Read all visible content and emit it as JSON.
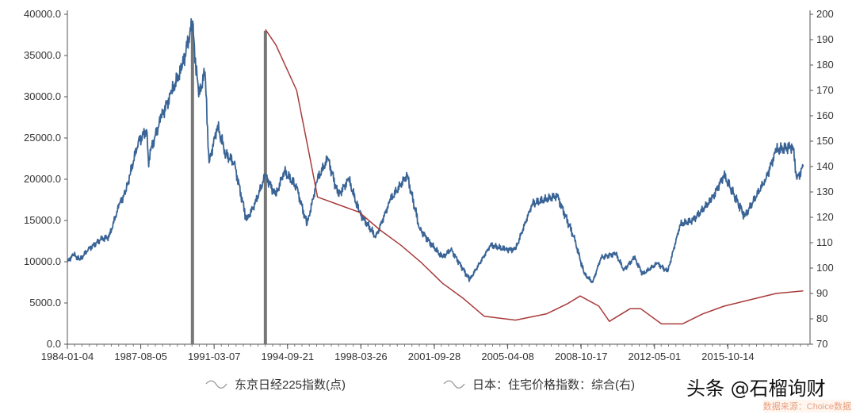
{
  "chart_data": {
    "type": "line",
    "x_tick_labels": [
      "1984-01-04",
      "1987-08-05",
      "1991-03-07",
      "1994-09-21",
      "1998-03-26",
      "2001-09-28",
      "2005-04-08",
      "2008-10-17",
      "2012-05-01",
      "2015-10-14"
    ],
    "y_left": {
      "range": [
        0,
        40000
      ],
      "ticks": [
        "0.0",
        "5000.0",
        "10000.0",
        "15000.0",
        "20000.0",
        "25000.0",
        "30000.0",
        "35000.0",
        "40000.0"
      ]
    },
    "y_right": {
      "range": [
        70,
        200
      ],
      "ticks": [
        "70",
        "80",
        "90",
        "100",
        "110",
        "120",
        "130",
        "140",
        "150",
        "160",
        "170",
        "180",
        "190",
        "200"
      ]
    },
    "grid": false,
    "legend_placement": "bottom",
    "series": [
      {
        "name": "东京日经225指数(点)",
        "axis": "left",
        "color": "#3a6496",
        "points": [
          [
            1984.0,
            10000
          ],
          [
            1984.3,
            10900
          ],
          [
            1984.6,
            10200
          ],
          [
            1985.0,
            11500
          ],
          [
            1985.6,
            12700
          ],
          [
            1986.0,
            13000
          ],
          [
            1986.5,
            17000
          ],
          [
            1986.8,
            18500
          ],
          [
            1987.0,
            20500
          ],
          [
            1987.4,
            24500
          ],
          [
            1987.8,
            26000
          ],
          [
            1987.9,
            21500
          ],
          [
            1988.0,
            23500
          ],
          [
            1988.5,
            27500
          ],
          [
            1989.0,
            30500
          ],
          [
            1989.5,
            33500
          ],
          [
            1989.99,
            38900
          ],
          [
            1990.3,
            30000
          ],
          [
            1990.6,
            33000
          ],
          [
            1990.8,
            22000
          ],
          [
            1991.2,
            26500
          ],
          [
            1991.6,
            23000
          ],
          [
            1992.0,
            22000
          ],
          [
            1992.6,
            15000
          ],
          [
            1993.0,
            17000
          ],
          [
            1993.5,
            20500
          ],
          [
            1994.0,
            18000
          ],
          [
            1994.4,
            21000
          ],
          [
            1995.0,
            19000
          ],
          [
            1995.5,
            14500
          ],
          [
            1996.0,
            20000
          ],
          [
            1996.5,
            22500
          ],
          [
            1997.0,
            18000
          ],
          [
            1997.5,
            20000
          ],
          [
            1998.0,
            16000
          ],
          [
            1998.8,
            13000
          ],
          [
            1999.5,
            17500
          ],
          [
            2000.3,
            20500
          ],
          [
            2000.9,
            14000
          ],
          [
            2001.5,
            12000
          ],
          [
            2002.0,
            10500
          ],
          [
            2002.4,
            11500
          ],
          [
            2003.3,
            7800
          ],
          [
            2004.3,
            12000
          ],
          [
            2005.0,
            11500
          ],
          [
            2005.5,
            11500
          ],
          [
            2006.3,
            17000
          ],
          [
            2007.5,
            18000
          ],
          [
            2008.3,
            13000
          ],
          [
            2008.8,
            8500
          ],
          [
            2009.2,
            7500
          ],
          [
            2009.6,
            10500
          ],
          [
            2010.3,
            11000
          ],
          [
            2010.7,
            9000
          ],
          [
            2011.2,
            10500
          ],
          [
            2011.6,
            8500
          ],
          [
            2012.3,
            9800
          ],
          [
            2012.8,
            8800
          ],
          [
            2013.4,
            14500
          ],
          [
            2014.0,
            15000
          ],
          [
            2014.9,
            17500
          ],
          [
            2015.5,
            20500
          ],
          [
            2016.5,
            15500
          ],
          [
            2017.5,
            20000
          ],
          [
            2018.0,
            23500
          ],
          [
            2018.8,
            24000
          ],
          [
            2019.0,
            20000
          ],
          [
            2019.3,
            21500
          ]
        ]
      },
      {
        "name": "日本：住宅价格指数：综合(右)",
        "axis": "right",
        "color": "#a83a3a",
        "points": [
          [
            1993.5,
            194
          ],
          [
            1994.0,
            188
          ],
          [
            1995.0,
            170
          ],
          [
            1995.6,
            145
          ],
          [
            1996.0,
            128
          ],
          [
            1997.0,
            125
          ],
          [
            1998.0,
            122
          ],
          [
            1999.0,
            115
          ],
          [
            2000.0,
            109
          ],
          [
            2001.0,
            102
          ],
          [
            2002.0,
            94
          ],
          [
            2003.0,
            88
          ],
          [
            2004.0,
            81
          ],
          [
            2005.5,
            79.5
          ],
          [
            2007.0,
            82
          ],
          [
            2008.0,
            86
          ],
          [
            2008.6,
            89
          ],
          [
            2009.5,
            85
          ],
          [
            2010.0,
            79
          ],
          [
            2011.0,
            84
          ],
          [
            2011.5,
            84
          ],
          [
            2012.5,
            78
          ],
          [
            2013.5,
            78
          ],
          [
            2014.5,
            82
          ],
          [
            2015.5,
            85
          ],
          [
            2017.0,
            88
          ],
          [
            2018.0,
            90
          ],
          [
            2019.3,
            91
          ]
        ]
      }
    ],
    "annotations": [
      {
        "type": "vertical-bar",
        "x": 1990.0,
        "y": 38900
      },
      {
        "type": "vertical-bar",
        "x": 1993.5,
        "y": 38000
      }
    ]
  },
  "watermark": "头条 @石榴询财",
  "source": "数据来源：Choice数据"
}
